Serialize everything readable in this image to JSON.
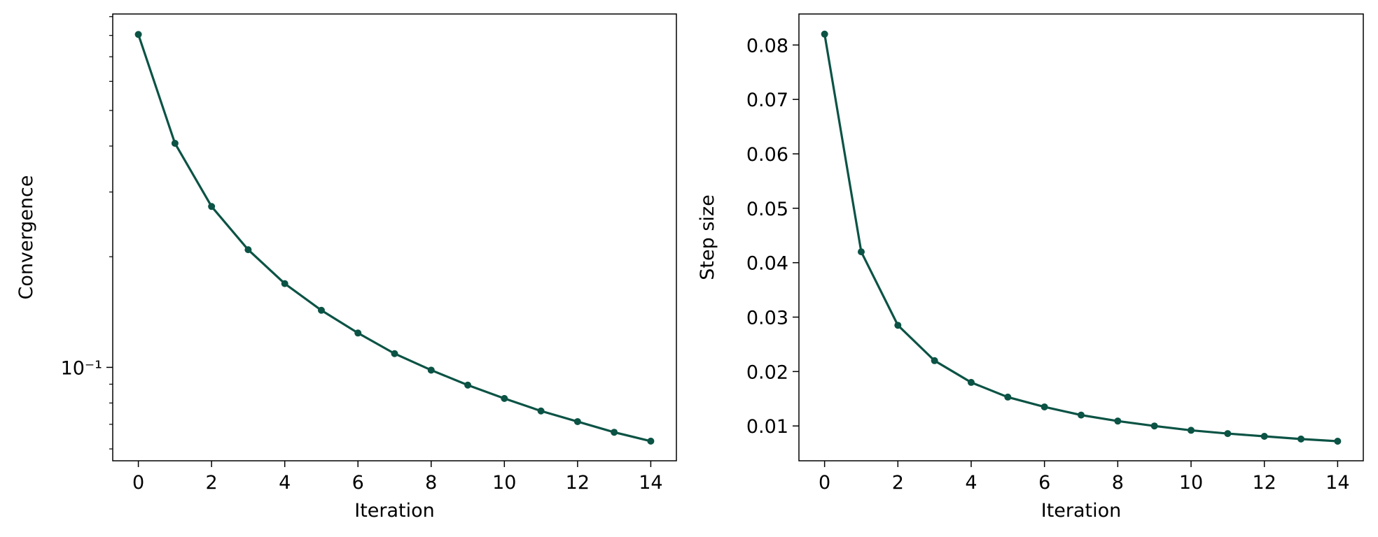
{
  "chart_data": [
    {
      "type": "line",
      "xlabel": "Iteration",
      "ylabel": "Convergence",
      "color": "#0b5345",
      "log_y": true,
      "x": [
        0,
        1,
        2,
        3,
        4,
        5,
        6,
        7,
        8,
        9,
        10,
        11,
        12,
        13,
        14
      ],
      "values": [
        0.805,
        0.407,
        0.274,
        0.209,
        0.169,
        0.143,
        0.124,
        0.109,
        0.0983,
        0.0895,
        0.0823,
        0.0761,
        0.0712,
        0.0666,
        0.063
      ],
      "xlim": [
        -0.7,
        14.7
      ],
      "xticks": [
        0,
        2,
        4,
        6,
        8,
        10,
        12,
        14
      ],
      "ylim": [
        0.0557,
        0.915
      ],
      "yticks": [
        {
          "value": 0.1,
          "label": "10⁻¹"
        }
      ],
      "yminorticks": [
        0.06,
        0.07,
        0.08,
        0.09,
        0.2,
        0.3,
        0.4,
        0.5,
        0.6,
        0.7,
        0.8,
        0.9
      ]
    },
    {
      "type": "line",
      "xlabel": "Iteration",
      "ylabel": "Step size",
      "color": "#0b5345",
      "log_y": false,
      "x": [
        0,
        1,
        2,
        3,
        4,
        5,
        6,
        7,
        8,
        9,
        10,
        11,
        12,
        13,
        14
      ],
      "values": [
        0.082,
        0.042,
        0.0285,
        0.022,
        0.018,
        0.0153,
        0.0135,
        0.012,
        0.0109,
        0.01,
        0.0092,
        0.0086,
        0.0081,
        0.0076,
        0.0072
      ],
      "xlim": [
        -0.7,
        14.7
      ],
      "xticks": [
        0,
        2,
        4,
        6,
        8,
        10,
        12,
        14
      ],
      "ylim": [
        0.0036,
        0.0857
      ],
      "yticks": [
        0.01,
        0.02,
        0.03,
        0.04,
        0.05,
        0.06,
        0.07,
        0.08
      ]
    }
  ]
}
